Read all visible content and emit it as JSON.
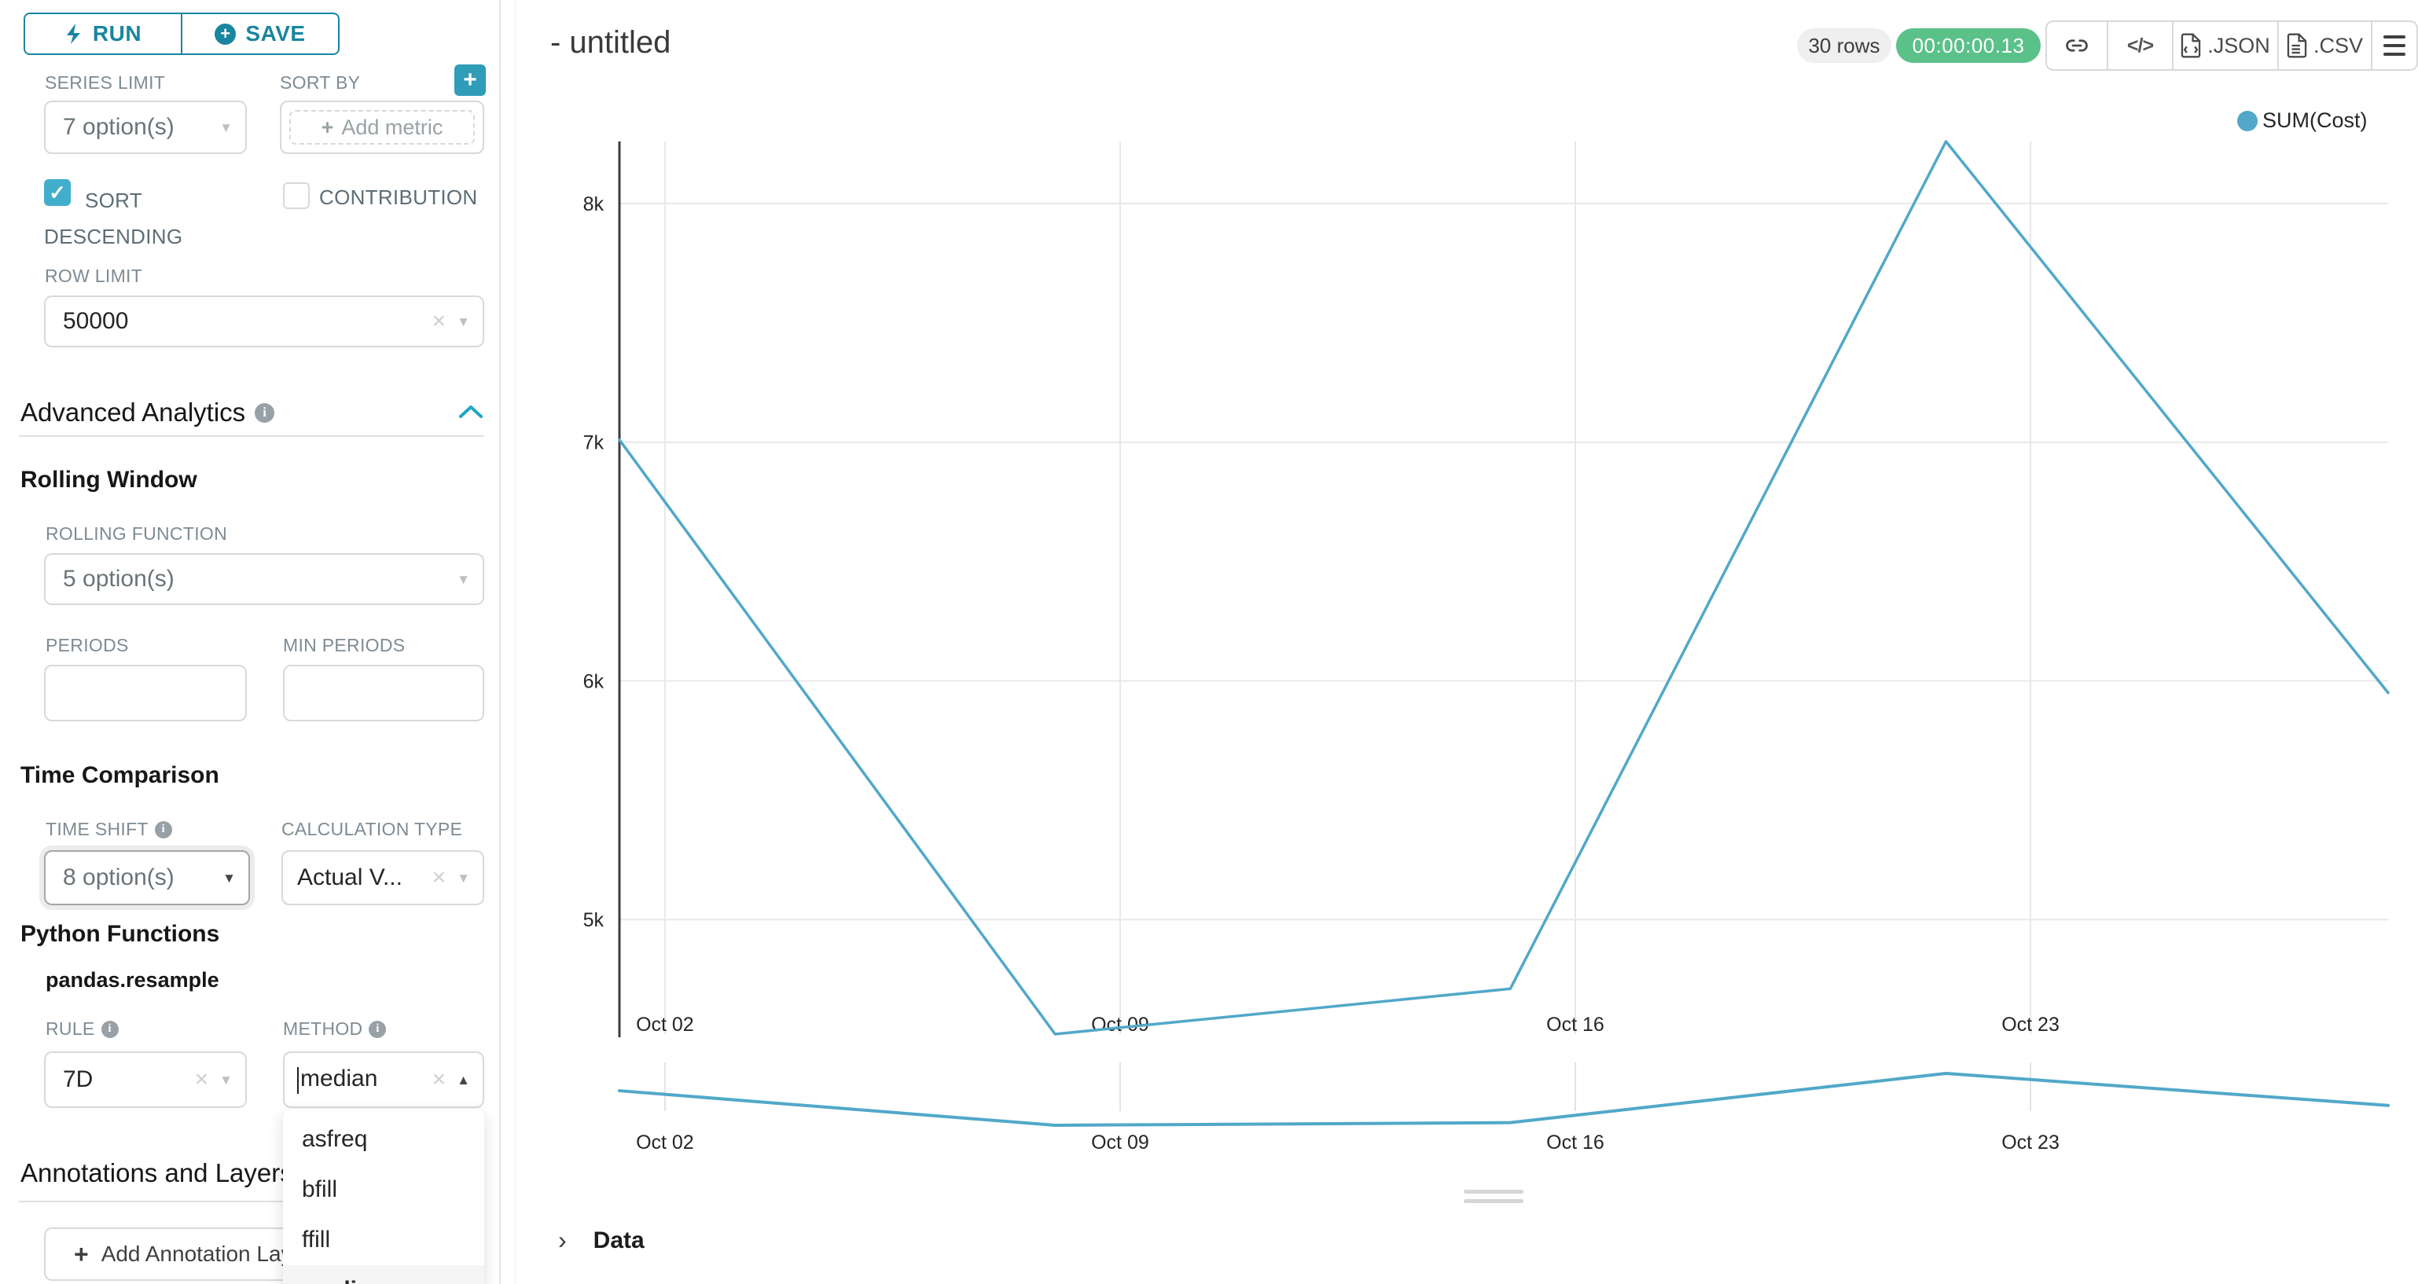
{
  "sidebar": {
    "run_label": "RUN",
    "save_label": "SAVE",
    "series_limit": {
      "label": "SERIES LIMIT",
      "value": "7 option(s)"
    },
    "sort_by": {
      "label": "SORT BY",
      "add_metric": "Add metric"
    },
    "sort_descending": {
      "label": "SORT DESCENDING",
      "checked": true
    },
    "contribution": {
      "label": "CONTRIBUTION",
      "checked": false
    },
    "row_limit": {
      "label": "ROW LIMIT",
      "value": "50000"
    },
    "advanced_analytics_title": "Advanced Analytics",
    "rolling_window": {
      "title": "Rolling Window",
      "rolling_function": {
        "label": "ROLLING FUNCTION",
        "value": "5 option(s)"
      },
      "periods_label": "PERIODS",
      "min_periods_label": "MIN PERIODS"
    },
    "time_comparison": {
      "title": "Time Comparison",
      "time_shift": {
        "label": "TIME SHIFT",
        "value": "8 option(s)"
      },
      "calculation_type": {
        "label": "CALCULATION TYPE",
        "value": "Actual V..."
      }
    },
    "python_functions": {
      "title": "Python Functions",
      "subtitle": "pandas.resample",
      "rule": {
        "label": "RULE",
        "value": "7D"
      },
      "method": {
        "label": "METHOD",
        "value": "median",
        "options": [
          "asfreq",
          "bfill",
          "ffill",
          "median"
        ],
        "selected": "median"
      }
    },
    "annotations": {
      "title": "Annotations and Layers",
      "add_button": "Add Annotation Layer"
    }
  },
  "header": {
    "title": "- untitled",
    "rows_badge": "30 rows",
    "timer": "00:00:00.13",
    "json_label": ".JSON",
    "csv_label": ".CSV"
  },
  "legend": {
    "label": "SUM(Cost)",
    "color": "#51a8c8"
  },
  "data_panel": {
    "title": "Data"
  },
  "colors": {
    "accent_teal": "#1985a0",
    "bright_teal": "#20a7c9",
    "checkbox_teal": "#41aecb",
    "timer_green": "#5ac189",
    "series_line": "#51a8c8"
  },
  "chart_data": {
    "type": "line",
    "title": "",
    "x_unit": "days since Oct 01",
    "x_range": [
      0,
      27.2
    ],
    "y_range": [
      4520,
      8260
    ],
    "grid": true,
    "legend_position": "top-right",
    "context_chart": true,
    "series": [
      {
        "name": "SUM(Cost)",
        "color": "#51a8c8",
        "points": [
          {
            "x": 0,
            "y": 7010
          },
          {
            "x": 6.7,
            "y": 4520
          },
          {
            "x": 13.7,
            "y": 4710
          },
          {
            "x": 20.4,
            "y": 8260
          },
          {
            "x": 27.2,
            "y": 5950
          }
        ]
      }
    ],
    "x_ticks": [
      {
        "label": "Oct 02",
        "x": 0.7
      },
      {
        "label": "Oct 09",
        "x": 7.7
      },
      {
        "label": "Oct 16",
        "x": 14.7
      },
      {
        "label": "Oct 23",
        "x": 21.7
      }
    ],
    "y_ticks": [
      {
        "label": "5k",
        "value": 5000
      },
      {
        "label": "6k",
        "value": 6000
      },
      {
        "label": "7k",
        "value": 7000
      },
      {
        "label": "8k",
        "value": 8000
      }
    ]
  }
}
